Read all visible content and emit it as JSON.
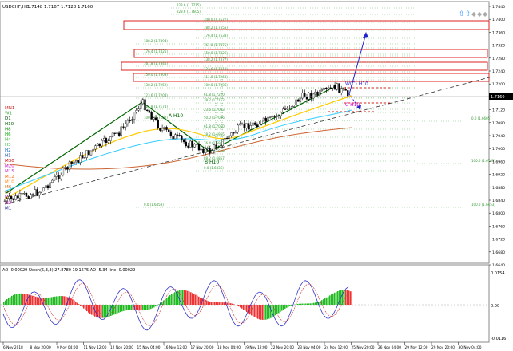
{
  "header": {
    "symbol": "USDCHF,H2",
    "ohlc": "1.7148 1.7167 1.7128 1.7160"
  },
  "toolbar": {
    "icon_names": [
      "up-arrow-icon",
      "up-arrow-icon",
      "diamond-icon",
      "diamond-icon",
      "diamond-icon",
      "diamond-icon"
    ]
  },
  "timeframes": [
    "MN1",
    "W1",
    "D1",
    "H10",
    "H8",
    "H6",
    "H4",
    "H3",
    "H2",
    "H1",
    "M30",
    "M20",
    "M15",
    "M12",
    "M10",
    "M6",
    "M5",
    "M3",
    "M2",
    "M1"
  ],
  "timeframe_colors": [
    "#cc2222",
    "#33aa33",
    "#004400",
    "#006600",
    "#008800",
    "#00aa00",
    "#22bb22",
    "#33bb44",
    "#0066cc",
    "#0044aa",
    "#cc0000",
    "#cc00cc",
    "#cc33cc",
    "#ff6600",
    "#ff8800",
    "#cc6600",
    "#996600",
    "#aa00aa",
    "#cc00cc",
    "#000099"
  ],
  "price_axis": [
    "1.7440",
    "1.7400",
    "1.7360",
    "1.7320",
    "1.7280",
    "1.7240",
    "1.7200",
    "1.7160",
    "1.7120",
    "1.7080",
    "1.7040",
    "1.7000",
    "1.6960",
    "1.6920",
    "1.6880",
    "1.6840",
    "1.6800",
    "1.6760",
    "1.6720",
    "1.6680",
    "1.6640"
  ],
  "current_price": "1.7160",
  "fib_levels": [
    "223.6 (1.7715)",
    "223.6 (1.7605)",
    "200.0 (1.7572)",
    "188.2 (1.7555)",
    "176.4 (1.7538)",
    "188.2 (1.7494)",
    "161.8 (1.7475)",
    "176.4 (1.7425)",
    "150.0 (1.7426)",
    "138.2 (1.7377)",
    "161.8 (1.7346)",
    "123.6 (1.7310)",
    "150.0 (1.7303)",
    "111.8 (1.7263)",
    "138.2 (1.7259)",
    "100.0 (1.7236)",
    "123.6 (1.7204)",
    "61.8 (1.7220)",
    "111.8 (1.7174)",
    "38.2 (1.7152)",
    "100.0 (1.7120)",
    "23.6 (1.7093)",
    "50.0 (1.7036)",
    "61.8 (1.7050)",
    "38.2 (1.6965)",
    "76.4 (1.6905)",
    "23.6 (1.6918)",
    "88.2 (1.6857)",
    "0.0 (1.6836)",
    "0.0 (1.6453)",
    "100.0 (1.6453)",
    "100.0 (1.6761)",
    "0.0 (1.6605)"
  ],
  "labels": {
    "a": "A H10",
    "b": "B H10",
    "c": "C H10",
    "w": "W(C) H10",
    "indicator": "AO -0.00029  Stoch(5,3,3) 27.8780  19.1675  AO  -5.34  line -0.00029",
    "osc_scale": [
      "0.0154",
      "0.00",
      "-0.0116"
    ]
  },
  "date_axis": [
    "6 Nov 2018",
    "8 Nov 20:00",
    "9 Nov 04:00",
    "11 Nov 12:00",
    "12 Nov 20:00",
    "15 Nov 04:00",
    "16 Nov 12:00",
    "17 Nov 20:00",
    "18 Nov 04:00",
    "19 Nov 12:00",
    "22 Nov 20:00",
    "23 Nov 04:00",
    "24 Nov 12:00",
    "25 Nov 20:00",
    "26 Nov 04:00",
    "29 Nov 12:00",
    "29 Nov 20:00",
    "30 Nov 04:00"
  ],
  "colors": {
    "fib_text": "#339933",
    "fib_line": "#44aa44",
    "red_box": "#dd2222",
    "projection": "#2222cc",
    "trend": "#006600",
    "ma_yellow": "#ffcc00",
    "ma_cyan": "#33ccff",
    "ma_brown": "#cc6633",
    "ao_up": "#22bb22",
    "ao_down": "#ee3333",
    "stoch": "#3333cc"
  }
}
